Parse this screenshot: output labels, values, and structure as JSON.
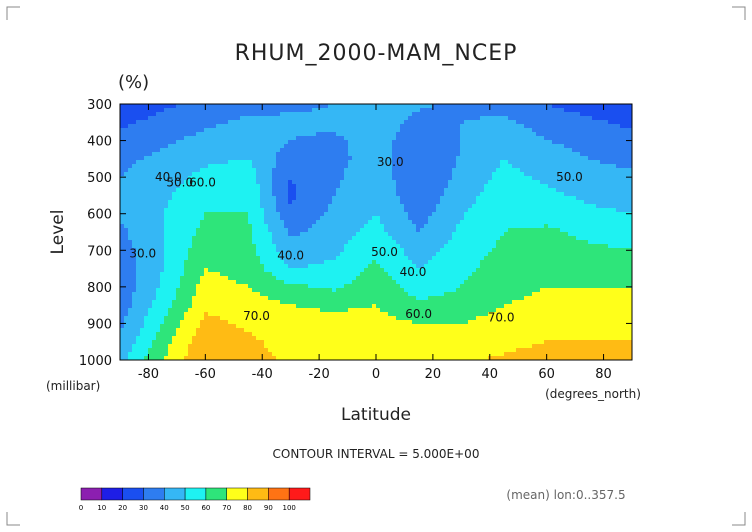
{
  "chart_data": {
    "type": "heatmap",
    "title": "RHUM_2000-MAM_NCEP",
    "units": "(%)",
    "xlabel": "Latitude",
    "ylabel": "Level",
    "x_units": "(degrees_north)",
    "y_units": "(millibar)",
    "xlim": [
      -90,
      90
    ],
    "ylim": [
      1000,
      300
    ],
    "x_ticks": [
      "-80",
      "-60",
      "-40",
      "-20",
      "0",
      "20",
      "40",
      "60",
      "80"
    ],
    "x_tick_values": [
      -80,
      -60,
      -40,
      -20,
      0,
      20,
      40,
      60,
      80
    ],
    "y_ticks": [
      "300",
      "400",
      "500",
      "600",
      "700",
      "800",
      "900",
      "1000"
    ],
    "y_tick_values": [
      300,
      400,
      500,
      600,
      700,
      800,
      900,
      1000
    ],
    "contour_interval": "CONTOUR INTERVAL = 5.000E+00",
    "footnote": "(mean) lon:0..357.5",
    "colorbar": {
      "ticks": [
        "0",
        "10",
        "20",
        "30",
        "40",
        "50",
        "60",
        "70",
        "80",
        "90",
        "100"
      ],
      "colors": [
        "#8c1fb0",
        "#1e1ee6",
        "#1a4ff0",
        "#2e7df0",
        "#35b7f5",
        "#1ef2f2",
        "#2ee57a",
        "#ffff1a",
        "#ffbb14",
        "#ff7314",
        "#ff1a1a"
      ]
    },
    "grid_lat": [
      -90,
      -75,
      -60,
      -45,
      -30,
      -15,
      0,
      15,
      30,
      45,
      60,
      75,
      90
    ],
    "grid_lev": [
      300,
      350,
      400,
      450,
      500,
      550,
      600,
      650,
      700,
      750,
      800,
      850,
      900,
      950,
      1000
    ],
    "values": [
      [
        22,
        28,
        33,
        36,
        38,
        40,
        42,
        41,
        38,
        36,
        30,
        25,
        20
      ],
      [
        28,
        33,
        38,
        42,
        42,
        42,
        44,
        38,
        40,
        42,
        36,
        32,
        28
      ],
      [
        34,
        38,
        43,
        46,
        40,
        38,
        45,
        33,
        40,
        46,
        40,
        37,
        33
      ],
      [
        38,
        42,
        48,
        50,
        34,
        36,
        46,
        30,
        41,
        50,
        44,
        40,
        37
      ],
      [
        40,
        45,
        53,
        55,
        30,
        38,
        47,
        30,
        43,
        53,
        48,
        44,
        42
      ],
      [
        42,
        48,
        57,
        58,
        28,
        40,
        48,
        32,
        46,
        56,
        52,
        48,
        46
      ],
      [
        41,
        50,
        60,
        60,
        32,
        42,
        50,
        36,
        49,
        58,
        56,
        52,
        50
      ],
      [
        38,
        50,
        63,
        62,
        38,
        45,
        53,
        40,
        52,
        60,
        62,
        57,
        55
      ],
      [
        35,
        50,
        66,
        64,
        43,
        48,
        58,
        45,
        55,
        62,
        66,
        62,
        60
      ],
      [
        33,
        50,
        70,
        66,
        50,
        52,
        62,
        50,
        58,
        64,
        68,
        66,
        64
      ],
      [
        33,
        52,
        74,
        70,
        62,
        58,
        66,
        55,
        60,
        66,
        70,
        70,
        70
      ],
      [
        35,
        55,
        78,
        74,
        70,
        68,
        70,
        62,
        64,
        70,
        73,
        74,
        74
      ],
      [
        38,
        60,
        83,
        78,
        74,
        74,
        73,
        70,
        70,
        74,
        76,
        77,
        77
      ],
      [
        42,
        65,
        88,
        82,
        76,
        78,
        77,
        74,
        76,
        78,
        80,
        80,
        80
      ],
      [
        46,
        70,
        90,
        84,
        78,
        80,
        79,
        78,
        79,
        81,
        83,
        82,
        82
      ]
    ],
    "contour_labels": [
      {
        "text": "30.0",
        "lat": 5,
        "lev": 470
      },
      {
        "text": "30.0",
        "lat": -82,
        "lev": 720
      },
      {
        "text": "40.0",
        "lat": -73,
        "lev": 510
      },
      {
        "text": "50.0",
        "lat": -69,
        "lev": 525
      },
      {
        "text": "60.0",
        "lat": -61,
        "lev": 525
      },
      {
        "text": "40.0",
        "lat": -30,
        "lev": 725
      },
      {
        "text": "50.0",
        "lat": 3,
        "lev": 715
      },
      {
        "text": "40.0",
        "lat": 13,
        "lev": 770
      },
      {
        "text": "60.0",
        "lat": 15,
        "lev": 885
      },
      {
        "text": "70.0",
        "lat": -42,
        "lev": 890
      },
      {
        "text": "70.0",
        "lat": 44,
        "lev": 895
      },
      {
        "text": "50.0",
        "lat": 68,
        "lev": 510
      }
    ]
  }
}
